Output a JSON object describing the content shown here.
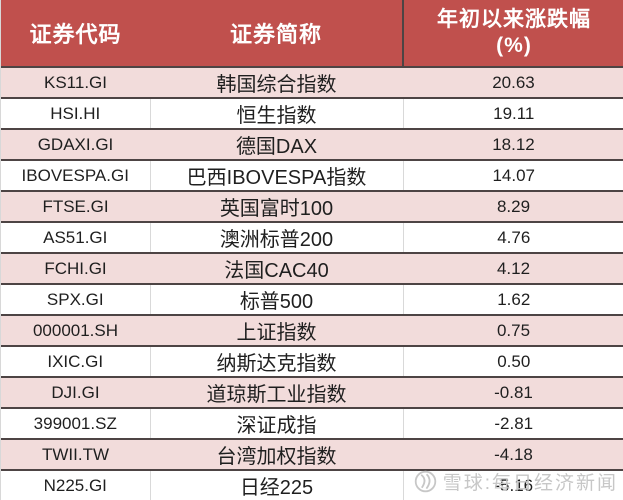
{
  "colors": {
    "header_bg": "#c0504d",
    "row_pink": "#f2dcdb",
    "row_white": "#ffffff",
    "border_dark": "#4d4444",
    "divider_light": "#d9d9d9",
    "watermark_gray": "#c7c7c7",
    "text": "#1f1f1f"
  },
  "table": {
    "headers": {
      "code": "证券代码",
      "name": "证券简称",
      "change_line1": "年初以来涨跌幅",
      "change_line2": "(%)"
    },
    "rows": [
      {
        "code": "KS11.GI",
        "name": "韩国综合指数",
        "change": "20.63"
      },
      {
        "code": "HSI.HI",
        "name": "恒生指数",
        "change": "19.11"
      },
      {
        "code": "GDAXI.GI",
        "name": "德国DAX",
        "change": "18.12"
      },
      {
        "code": "IBOVESPA.GI",
        "name": "巴西IBOVESPA指数",
        "change": "14.07"
      },
      {
        "code": "FTSE.GI",
        "name": "英国富时100",
        "change": "8.29"
      },
      {
        "code": "AS51.GI",
        "name": "澳洲标普200",
        "change": "4.76"
      },
      {
        "code": "FCHI.GI",
        "name": "法国CAC40",
        "change": "4.12"
      },
      {
        "code": "SPX.GI",
        "name": "标普500",
        "change": "1.62"
      },
      {
        "code": "000001.SH",
        "name": "上证指数",
        "change": "0.75"
      },
      {
        "code": "IXIC.GI",
        "name": "纳斯达克指数",
        "change": "0.50"
      },
      {
        "code": "DJI.GI",
        "name": "道琼斯工业指数",
        "change": "-0.81"
      },
      {
        "code": "399001.SZ",
        "name": "深证成指",
        "change": "-2.81"
      },
      {
        "code": "TWII.TW",
        "name": "台湾加权指数",
        "change": "-4.18"
      },
      {
        "code": "N225.GI",
        "name": "日经225",
        "change": "-5.16"
      }
    ]
  },
  "watermark": {
    "icon": "xueqiu-logo",
    "text": "雪球:每日经济新闻"
  },
  "chart_data": {
    "type": "table",
    "title": "年初以来涨跌幅(%)",
    "columns": [
      "证券代码",
      "证券简称",
      "年初以来涨跌幅(%)"
    ],
    "categories": [
      "韩国综合指数",
      "恒生指数",
      "德国DAX",
      "巴西IBOVESPA指数",
      "英国富时100",
      "澳洲标普200",
      "法国CAC40",
      "标普500",
      "上证指数",
      "纳斯达克指数",
      "道琼斯工业指数",
      "深证成指",
      "台湾加权指数",
      "日经225"
    ],
    "codes": [
      "KS11.GI",
      "HSI.HI",
      "GDAXI.GI",
      "IBOVESPA.GI",
      "FTSE.GI",
      "AS51.GI",
      "FCHI.GI",
      "SPX.GI",
      "000001.SH",
      "IXIC.GI",
      "DJI.GI",
      "399001.SZ",
      "TWII.TW",
      "N225.GI"
    ],
    "values": [
      20.63,
      19.11,
      18.12,
      14.07,
      8.29,
      4.76,
      4.12,
      1.62,
      0.75,
      0.5,
      -0.81,
      -2.81,
      -4.18,
      -5.16
    ]
  }
}
